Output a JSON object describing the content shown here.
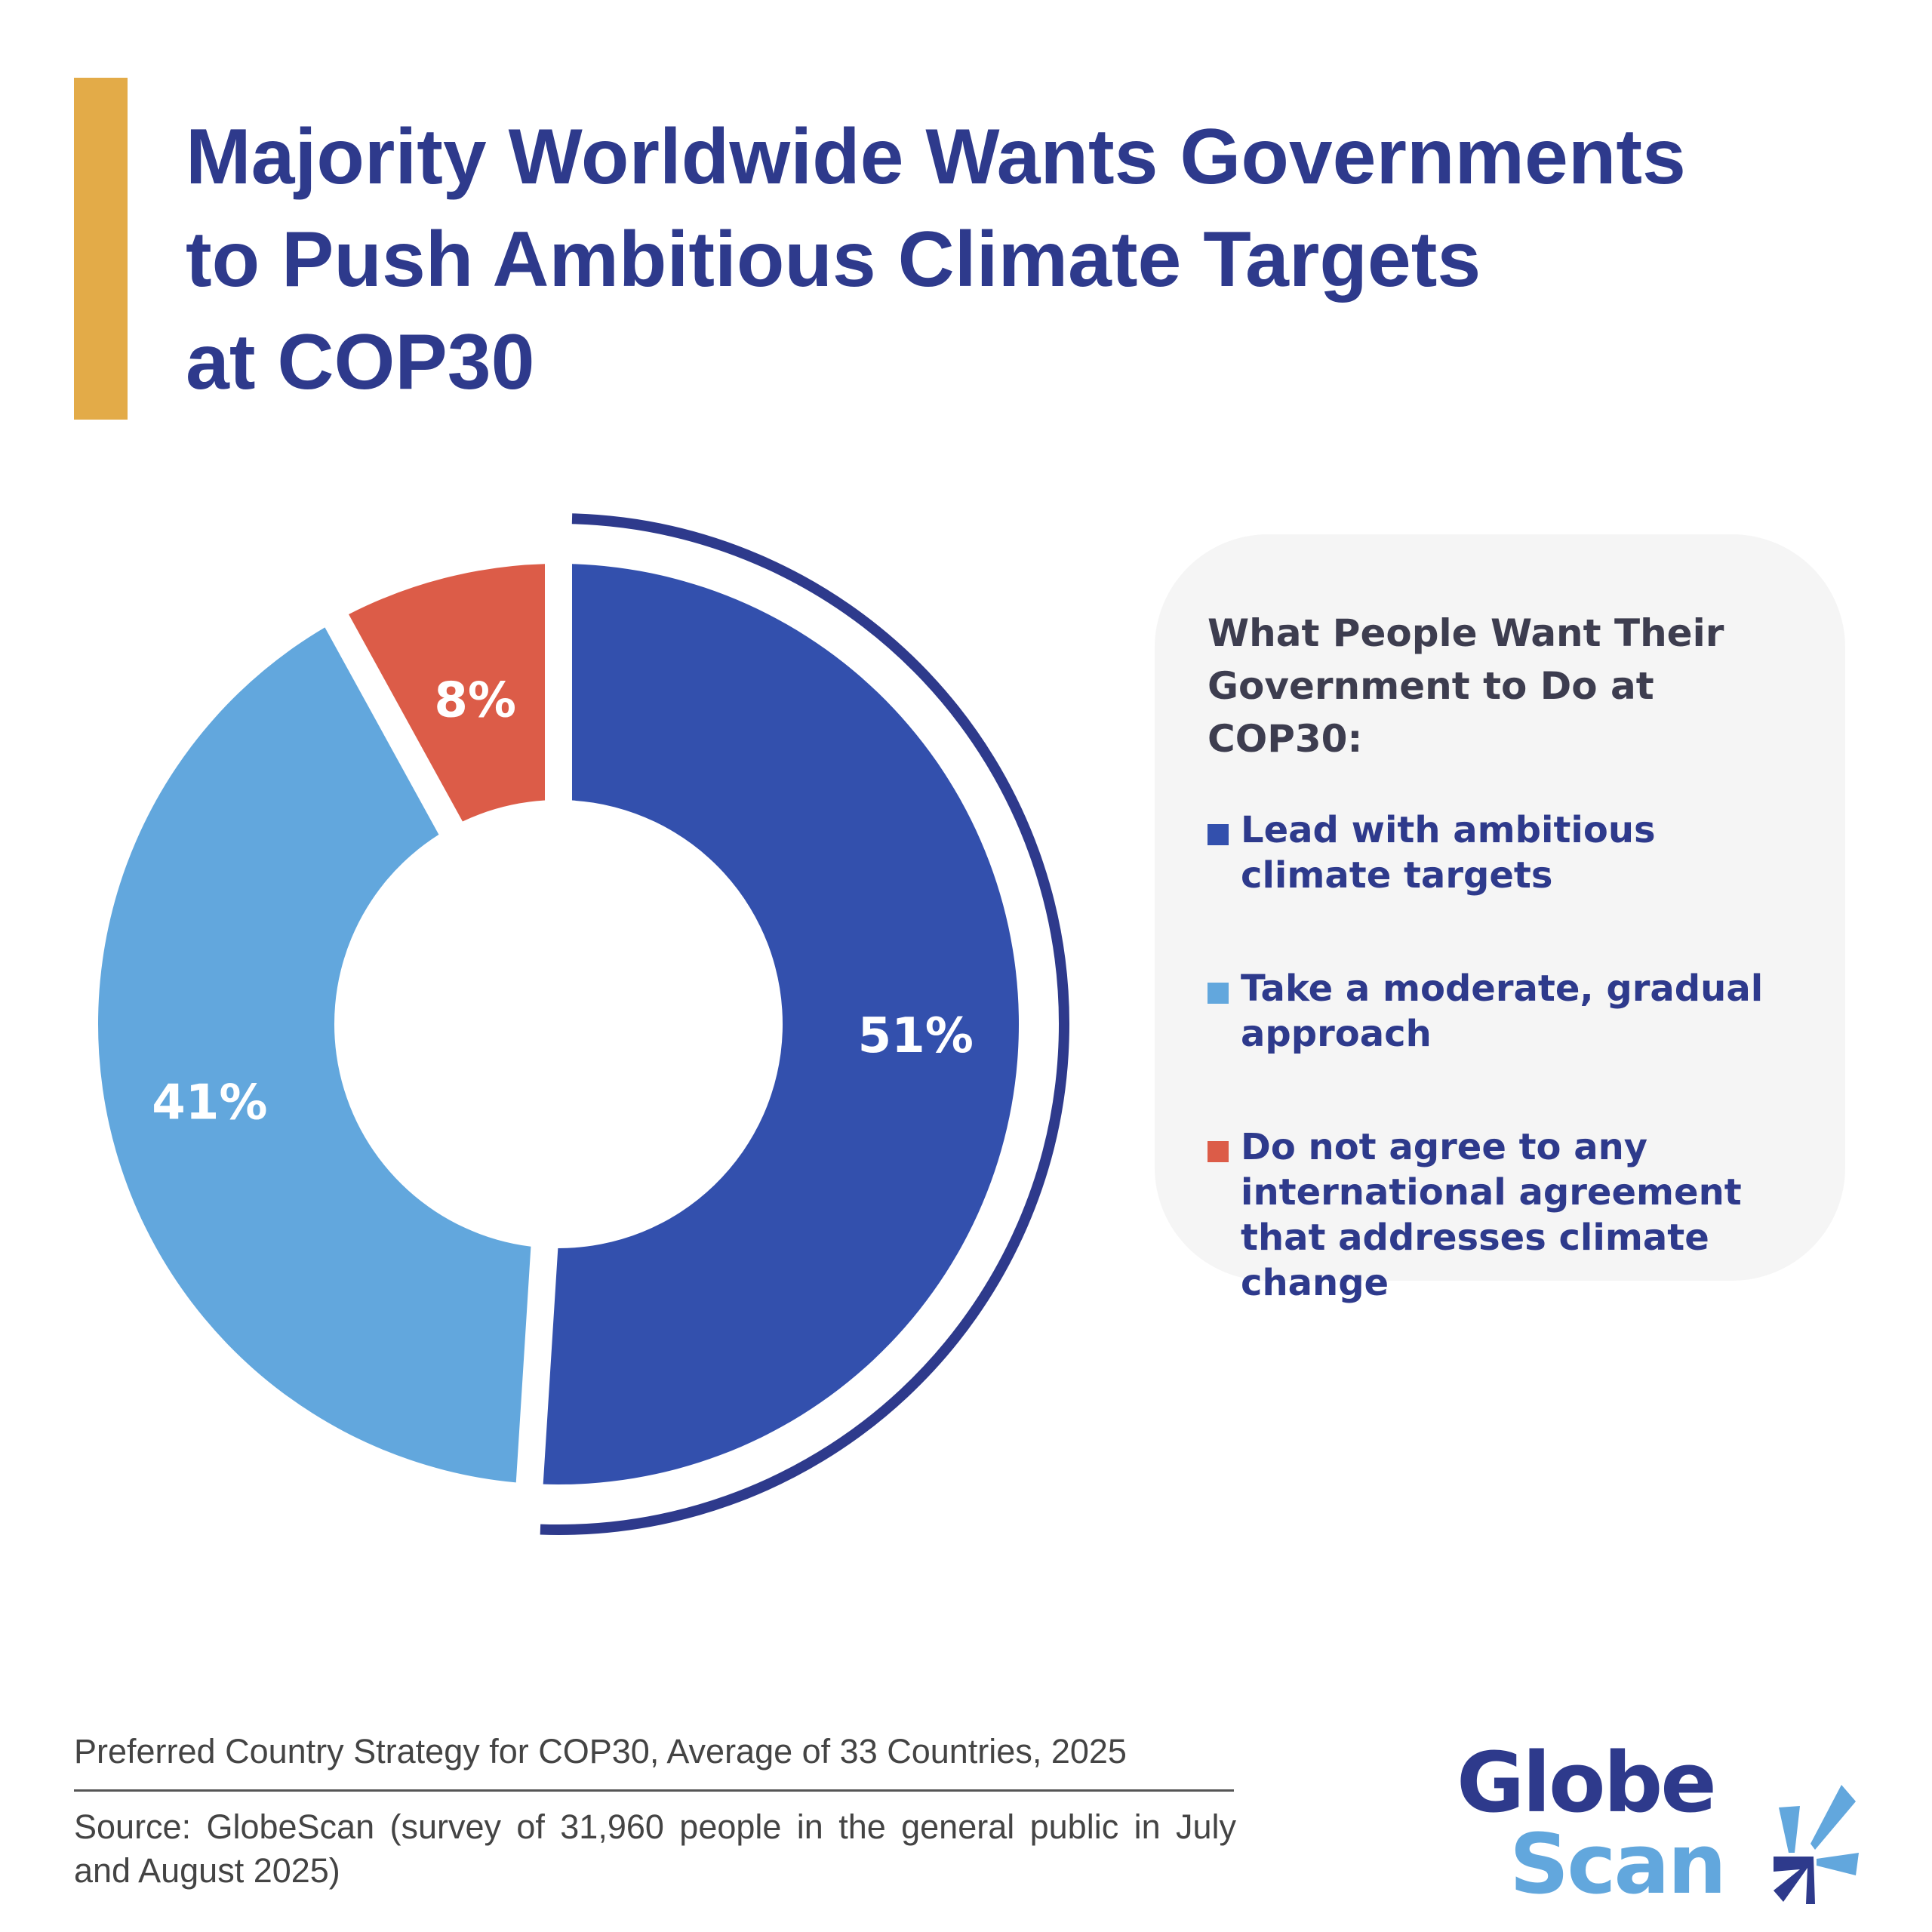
{
  "title": {
    "lines": [
      "Majority Worldwide Wants Governments",
      "to Push Ambitious Climate Targets",
      "at COP30"
    ]
  },
  "colors": {
    "accent": "#e3ab48",
    "title": "#2e3a8c",
    "lead": "#3350ad",
    "moderate": "#62a7dd",
    "no_agreement": "#dc5c48",
    "outline_arc": "#2e3a8c"
  },
  "legend": {
    "title": "What People Want Their Government to Do at COP30:",
    "items": [
      {
        "label": "Lead with ambitious climate targets",
        "color": "#3350ad"
      },
      {
        "label": "Take a moderate, gradual approach",
        "color": "#62a7dd"
      },
      {
        "label": "Do not agree to any international agreement that addresses climate change",
        "color": "#dc5c48"
      }
    ]
  },
  "chart_data": {
    "type": "pie",
    "variant": "donut",
    "categories": [
      "Lead with ambitious climate targets",
      "Take a moderate, gradual approach",
      "Do not agree to any international agreement that addresses climate change"
    ],
    "values": [
      51,
      41,
      8
    ],
    "labels": [
      "51%",
      "41%",
      "8%"
    ],
    "colors": [
      "#3350ad",
      "#62a7dd",
      "#dc5c48"
    ],
    "start": "top, clockwise",
    "highlight": "Lead with ambitious climate targets",
    "legend_placement": "right"
  },
  "footer": {
    "caption": "Preferred Country Strategy for COP30, Average of 33 Countries, 2025",
    "source": "Source: GlobeScan (survey of 31,960 people in the general public in July and August 2025)"
  },
  "logo": {
    "line1": "Globe",
    "line2": "Scan"
  }
}
